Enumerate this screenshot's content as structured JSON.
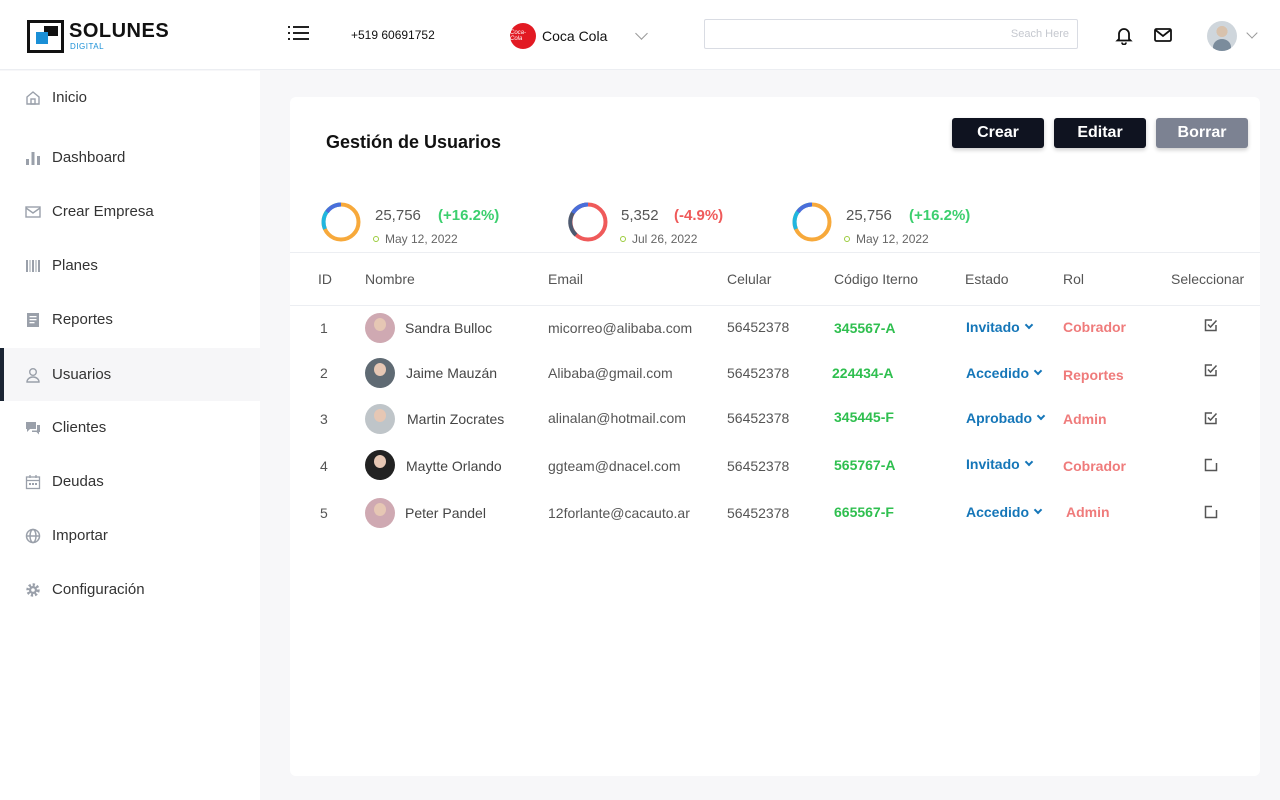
{
  "header": {
    "logo_text": "SOLUNES",
    "logo_sub": "DIGITAL",
    "phone": "+519 60691752",
    "company_logo_text": "Coca-Cola",
    "company_name": "Coca Cola",
    "search_placeholder": "Seach Here"
  },
  "sidebar": {
    "items": [
      {
        "label": "Inicio",
        "icon": "home-icon"
      },
      {
        "label": "Dashboard",
        "icon": "bar-chart-icon"
      },
      {
        "label": "Crear Empresa",
        "icon": "mail-icon"
      },
      {
        "label": "Planes",
        "icon": "barcode-icon"
      },
      {
        "label": "Reportes",
        "icon": "document-icon"
      },
      {
        "label": "Usuarios",
        "icon": "user-icon",
        "active": true
      },
      {
        "label": "Clientes",
        "icon": "chat-icon"
      },
      {
        "label": "Deudas",
        "icon": "calendar-icon"
      },
      {
        "label": "Importar",
        "icon": "globe-icon"
      },
      {
        "label": "Configuración",
        "icon": "gear-icon"
      }
    ]
  },
  "main": {
    "title": "Gestión de Usuarios",
    "buttons": {
      "crear": "Crear",
      "editar": "Editar",
      "borrar": "Borrar"
    },
    "stats": [
      {
        "value": "25,756",
        "change": "(+16.2%)",
        "date": "May 12, 2022",
        "positive": true
      },
      {
        "value": "5,352",
        "change": "(-4.9%)",
        "date": "Jul 26, 2022",
        "positive": false
      },
      {
        "value": "25,756",
        "change": "(+16.2%)",
        "date": "May 12, 2022",
        "positive": true
      }
    ],
    "columns": {
      "id": "ID",
      "nombre": "Nombre",
      "email": "Email",
      "celular": "Celular",
      "codigo": "Código Iterno",
      "estado": "Estado",
      "rol": "Rol",
      "seleccionar": "Seleccionar"
    },
    "rows": [
      {
        "id": "1",
        "nombre": "Sandra Bulloc",
        "email": "micorreo@alibaba.com",
        "celular": "56452378",
        "codigo": "345567-A",
        "estado": "Invitado",
        "rol": "Cobrador",
        "checked": true
      },
      {
        "id": "2",
        "nombre": "Jaime Mauzán",
        "email": "Alibaba@gmail.com",
        "celular": "56452378",
        "codigo": "224434-A",
        "estado": "Accedido",
        "rol": "Reportes",
        "checked": true
      },
      {
        "id": "3",
        "nombre": "Martin Zocrates",
        "email": "alinalan@hotmail.com",
        "celular": "56452378",
        "codigo": "345445-F",
        "estado": "Aprobado",
        "rol": "Admin",
        "checked": true
      },
      {
        "id": "4",
        "nombre": "Maytte Orlando",
        "email": "ggteam@dnacel.com",
        "celular": "56452378",
        "codigo": "565767-A",
        "estado": "Invitado",
        "rol": "Cobrador",
        "checked": false
      },
      {
        "id": "5",
        "nombre": "Peter Pandel",
        "email": "12forlante@cacauto.ar",
        "celular": "56452378",
        "codigo": "665567-F",
        "estado": "Accedido",
        "rol": "Admin",
        "checked": false
      }
    ]
  },
  "colors": {
    "positive": "#3ccf6e",
    "negative": "#ef5a5a",
    "estado": "#1576b8",
    "codigo": "#2fbf4f",
    "rol": "#ef7b7b",
    "dark_button": "#0f1320",
    "muted_button": "#7c8292"
  }
}
